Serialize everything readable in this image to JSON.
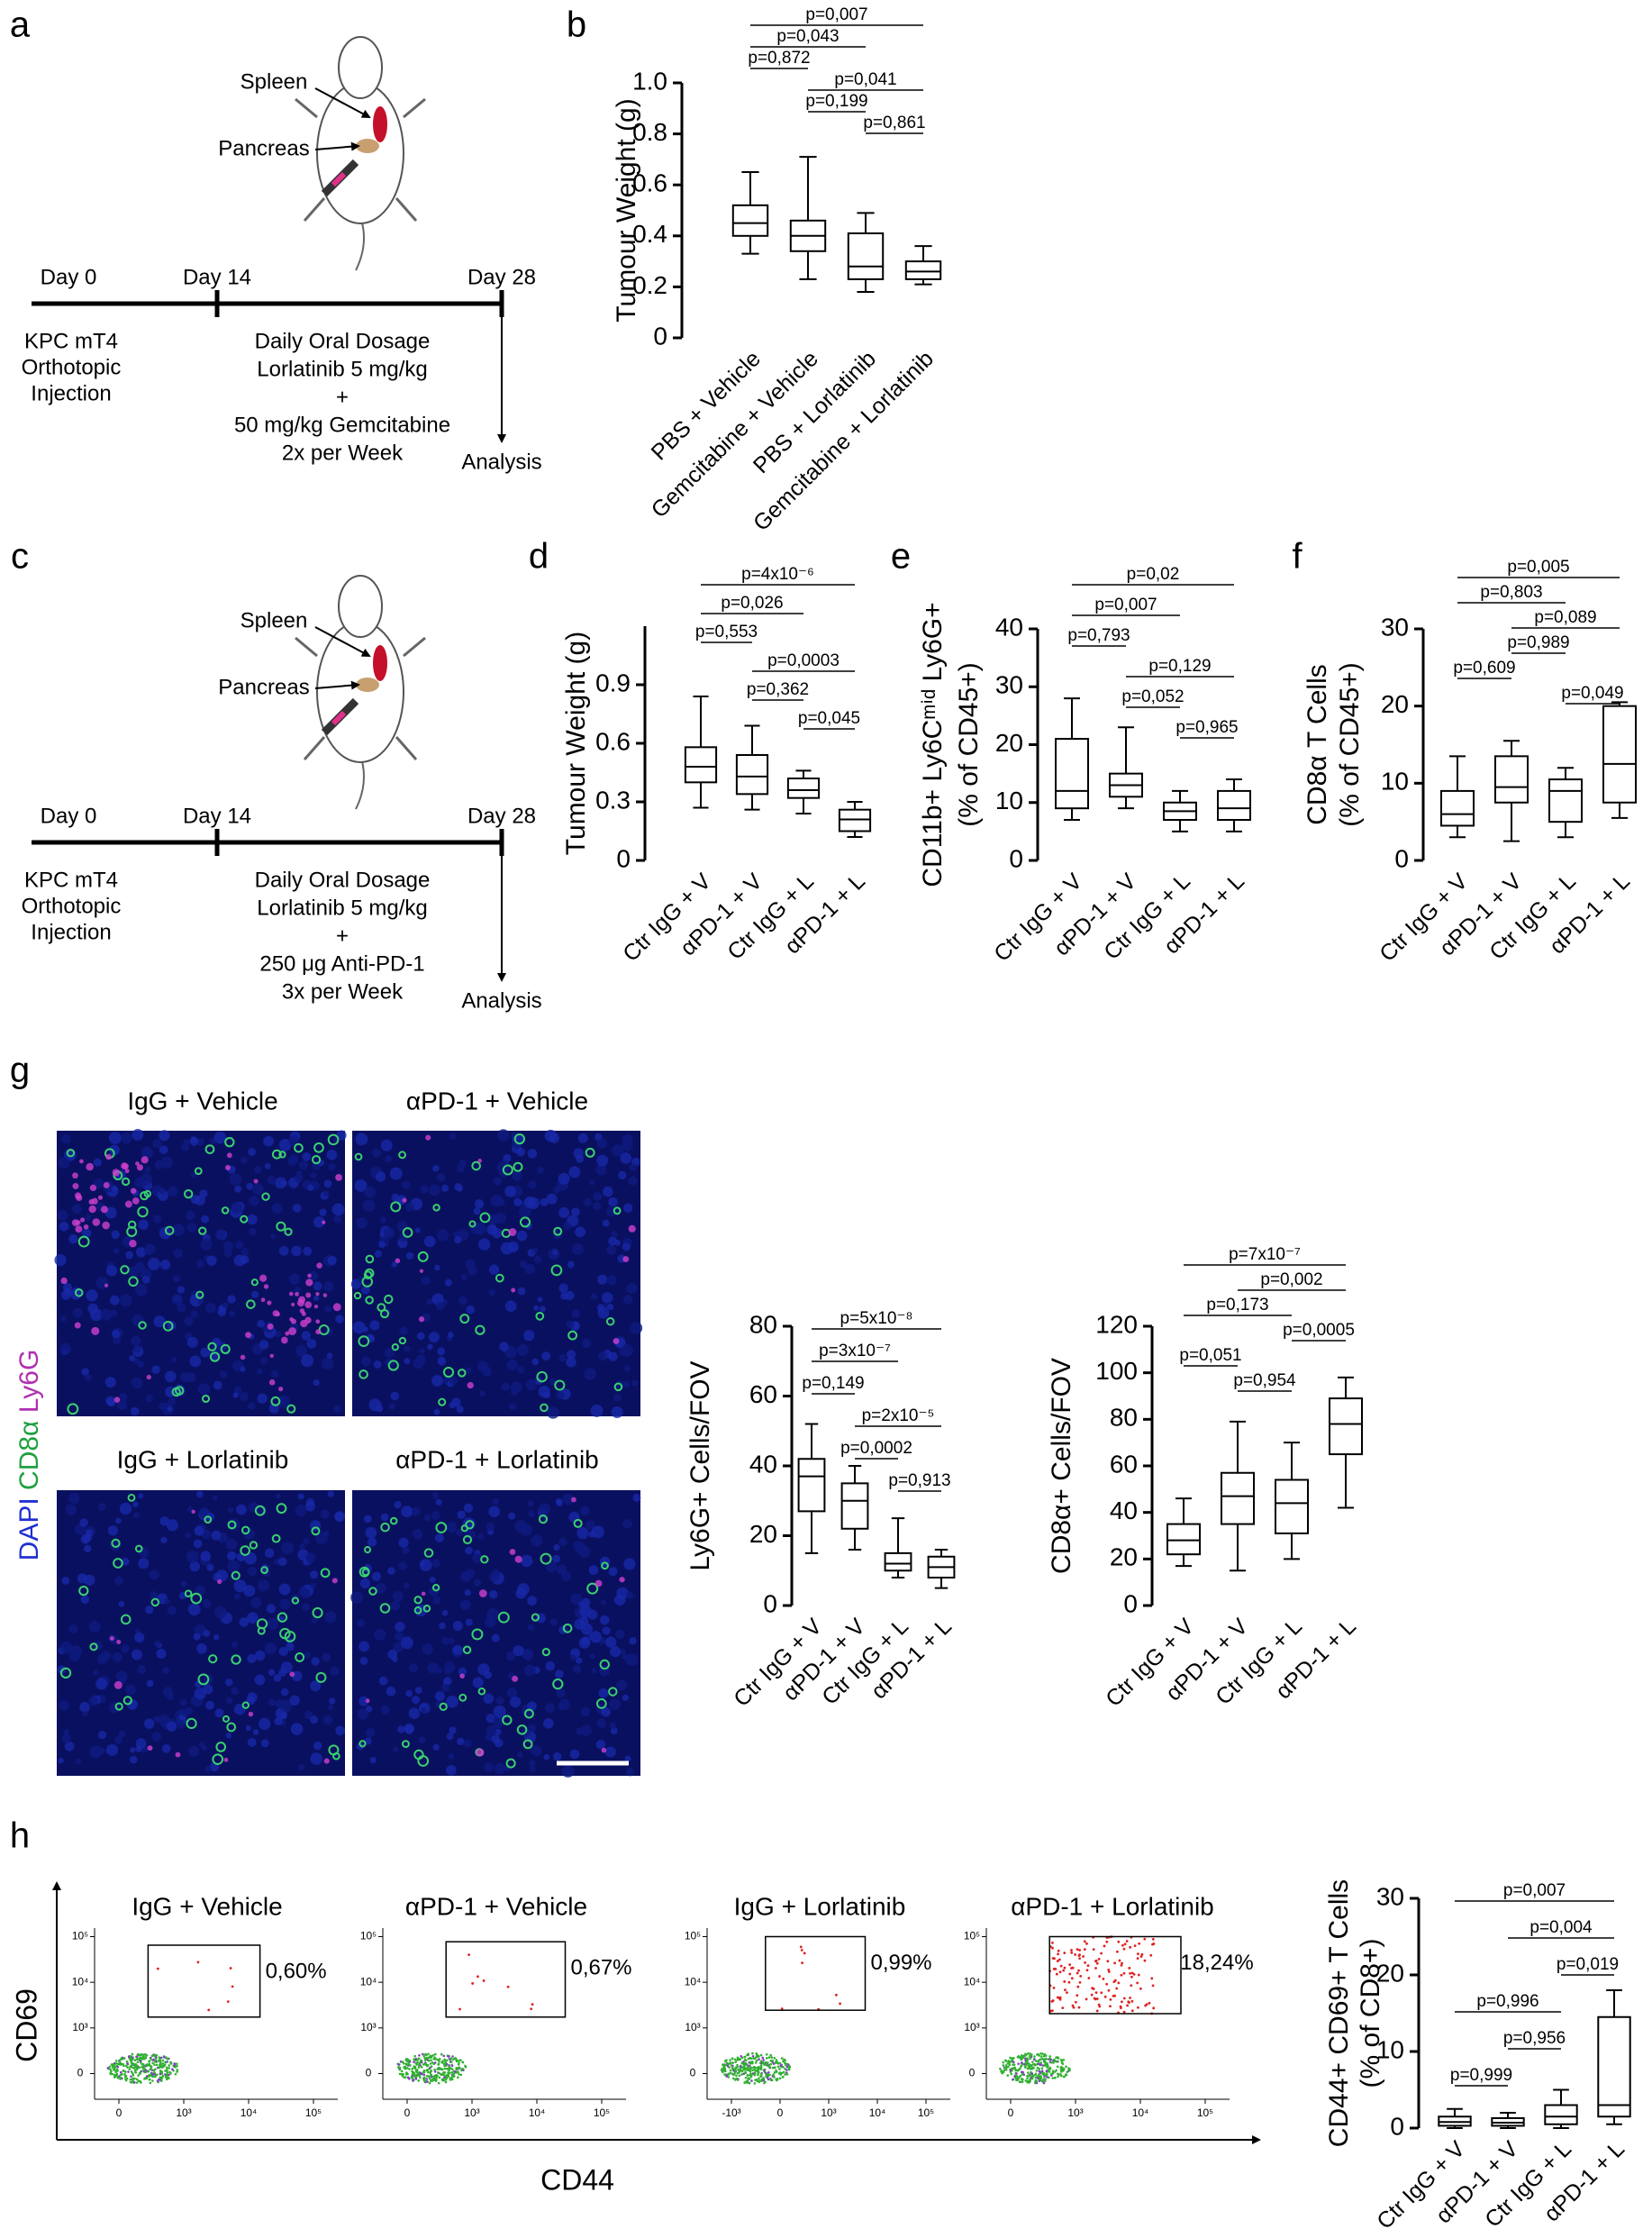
{
  "panel_labels": [
    "a",
    "b",
    "c",
    "d",
    "e",
    "f",
    "g",
    "h"
  ],
  "scheme_a": {
    "spleen": "Spleen",
    "pancreas": "Pancreas",
    "days": [
      "Day 0",
      "Day 14",
      "Day 28"
    ],
    "day0_text": [
      "KPC mT4",
      "Orthotopic",
      "Injection"
    ],
    "treatment": [
      "Daily Oral Dosage",
      "Lorlatinib 5 mg/kg",
      "+",
      "50 mg/kg Gemcitabine",
      "2x per Week"
    ],
    "analysis": "Analysis"
  },
  "scheme_c": {
    "spleen": "Spleen",
    "pancreas": "Pancreas",
    "days": [
      "Day 0",
      "Day 14",
      "Day 28"
    ],
    "day0_text": [
      "KPC mT4",
      "Orthotopic",
      "Injection"
    ],
    "treatment": [
      "Daily Oral Dosage",
      "Lorlatinib 5 mg/kg",
      "+",
      "250 μg Anti-PD-1",
      "3x per Week"
    ],
    "analysis": "Analysis"
  },
  "microscopy": {
    "titles": [
      "IgG + Vehicle",
      "αPD-1 + Vehicle",
      "IgG + Lorlatinib",
      "αPD-1 + Lorlatinib"
    ],
    "stain": [
      "DAPI",
      "CD8α",
      "Ly6G"
    ]
  },
  "flow": {
    "y_axis": "CD69",
    "x_axis": "CD44",
    "plots": [
      {
        "title": "IgG + Vehicle",
        "percent": "0,60%",
        "x_ticks": [
          "0",
          "10³",
          "10⁴",
          "10⁵"
        ],
        "y_ticks": [
          "0",
          "10³",
          "10⁴",
          "10⁵"
        ]
      },
      {
        "title": "αPD-1 + Vehicle",
        "percent": "0,67%",
        "x_ticks": [
          "0",
          "10³",
          "10⁴",
          "10⁵"
        ],
        "y_ticks": [
          "0",
          "10³",
          "10⁴",
          "10⁵"
        ]
      },
      {
        "title": "IgG + Lorlatinib",
        "percent": "0,99%",
        "x_ticks": [
          "-10³",
          "0",
          "10³",
          "10⁴",
          "10⁵"
        ],
        "y_ticks": [
          "0",
          "10³",
          "10⁴",
          "10⁵"
        ]
      },
      {
        "title": "αPD-1 + Lorlatinib",
        "percent": "18,24%",
        "x_ticks": [
          "0",
          "10³",
          "10⁴",
          "10⁵"
        ],
        "y_ticks": [
          "0",
          "10³",
          "10⁴",
          "10⁵"
        ]
      }
    ]
  },
  "chart_data": [
    {
      "type": "box",
      "ylabel": [
        "Tumour Weight (g)"
      ],
      "categories": [
        "PBS + Vehicle",
        "Gemcitabine + Vehicle",
        "PBS + Lorlatinib",
        "Gemcitabine + Lorlatinib"
      ],
      "boxes": [
        {
          "min": 0.33,
          "q1": 0.4,
          "median": 0.45,
          "q3": 0.52,
          "max": 0.65
        },
        {
          "min": 0.23,
          "q1": 0.34,
          "median": 0.4,
          "q3": 0.46,
          "max": 0.71
        },
        {
          "min": 0.18,
          "q1": 0.23,
          "median": 0.28,
          "q3": 0.41,
          "max": 0.49
        },
        {
          "min": 0.21,
          "q1": 0.23,
          "median": 0.26,
          "q3": 0.3,
          "max": 0.36
        }
      ],
      "ylim": [
        0,
        1
      ],
      "yticks": [
        0,
        0.2,
        0.4,
        0.6,
        0.8,
        {
          "value": 1,
          "label": "1.0"
        }
      ],
      "color": "#000000",
      "comparisons": [
        {
          "label": "p=0,007",
          "pair": [
            0,
            3
          ]
        },
        {
          "label": "p=0,043",
          "pair": [
            0,
            2
          ]
        },
        {
          "label": "p=0,872",
          "pair": [
            0,
            1
          ]
        },
        {
          "label": "p=0,041",
          "pair": [
            1,
            3
          ]
        },
        {
          "label": "p=0,199",
          "pair": [
            1,
            2
          ]
        },
        {
          "label": "p=0,861",
          "pair": [
            2,
            3
          ]
        }
      ]
    },
    {
      "type": "box",
      "ylabel": [
        "Tumour Weight (g)"
      ],
      "categories": [
        "Ctr IgG + V",
        "αPD-1 + V",
        "Ctr IgG + L",
        "αPD-1 + L"
      ],
      "boxes": [
        {
          "min": 0.27,
          "q1": 0.4,
          "median": 0.48,
          "q3": 0.58,
          "max": 0.84
        },
        {
          "min": 0.26,
          "q1": 0.34,
          "median": 0.43,
          "q3": 0.54,
          "max": 0.69
        },
        {
          "min": 0.24,
          "q1": 0.32,
          "median": 0.36,
          "q3": 0.42,
          "max": 0.46
        },
        {
          "min": 0.12,
          "q1": 0.15,
          "median": 0.21,
          "q3": 0.26,
          "max": 0.3
        }
      ],
      "ylim": [
        0,
        1.2
      ],
      "yticks": [
        0,
        0.3,
        0.6,
        0.9
      ],
      "color": "#000000",
      "comparisons": [
        {
          "label": "p=4x10⁻⁶",
          "pair": [
            0,
            3
          ]
        },
        {
          "label": "p=0,026",
          "pair": [
            0,
            2
          ]
        },
        {
          "label": "p=0,553",
          "pair": [
            0,
            1
          ]
        },
        {
          "label": "p=0,0003",
          "pair": [
            1,
            3
          ]
        },
        {
          "label": "p=0,362",
          "pair": [
            1,
            2
          ]
        },
        {
          "label": "p=0,045",
          "pair": [
            2,
            3
          ]
        }
      ]
    },
    {
      "type": "box",
      "ylabel": [
        "CD11b+ Ly6Cᵐⁱᵈ Ly6G+",
        "(% of CD45+)"
      ],
      "categories": [
        "Ctr IgG + V",
        "αPD-1 + V",
        "Ctr IgG + L",
        "αPD-1 + L"
      ],
      "boxes": [
        {
          "min": 7,
          "q1": 9,
          "median": 12,
          "q3": 21,
          "max": 28
        },
        {
          "min": 9,
          "q1": 11,
          "median": 13,
          "q3": 15,
          "max": 23
        },
        {
          "min": 5,
          "q1": 7,
          "median": 8.5,
          "q3": 10,
          "max": 12
        },
        {
          "min": 5,
          "q1": 7,
          "median": 9,
          "q3": 12,
          "max": 14
        }
      ],
      "ylim": [
        0,
        40
      ],
      "yticks": [
        0,
        10,
        20,
        30,
        40
      ],
      "color": "#000000",
      "comparisons": [
        {
          "label": "p=0,02",
          "pair": [
            0,
            3
          ]
        },
        {
          "label": "p=0,007",
          "pair": [
            0,
            2
          ]
        },
        {
          "label": "p=0,793",
          "pair": [
            0,
            1
          ]
        },
        {
          "label": "p=0,129",
          "pair": [
            1,
            3
          ]
        },
        {
          "label": "p=0,052",
          "pair": [
            1,
            2
          ]
        },
        {
          "label": "p=0,965",
          "pair": [
            2,
            3
          ]
        }
      ]
    },
    {
      "type": "box",
      "ylabel": [
        "CD8α T Cells",
        "(% of CD45+)"
      ],
      "categories": [
        "Ctr IgG + V",
        "αPD-1 + V",
        "Ctr IgG + L",
        "αPD-1 + L"
      ],
      "boxes": [
        {
          "min": 3,
          "q1": 4.5,
          "median": 6,
          "q3": 9,
          "max": 13.5
        },
        {
          "min": 2.5,
          "q1": 7.5,
          "median": 9.5,
          "q3": 13.5,
          "max": 15.5
        },
        {
          "min": 3,
          "q1": 5,
          "median": 9,
          "q3": 10.5,
          "max": 12
        },
        {
          "min": 5.5,
          "q1": 7.5,
          "median": 12.5,
          "q3": 20,
          "max": 20.5
        }
      ],
      "ylim": [
        0,
        30
      ],
      "yticks": [
        0,
        10,
        20,
        30
      ],
      "color": "#000000",
      "comparisons": [
        {
          "label": "p=0,005",
          "pair": [
            0,
            3
          ]
        },
        {
          "label": "p=0,803",
          "pair": [
            0,
            2
          ]
        },
        {
          "label": "p=0,089",
          "pair": [
            1,
            3
          ]
        },
        {
          "label": "p=0,989",
          "pair": [
            1,
            2
          ]
        },
        {
          "label": "p=0,609",
          "pair": [
            0,
            1
          ]
        },
        {
          "label": "p=0,049",
          "pair": [
            2,
            3
          ]
        }
      ]
    },
    {
      "type": "box",
      "ylabel": [
        "Ly6G+ Cells/FOV"
      ],
      "categories": [
        "Ctr IgG + V",
        "αPD-1 + V",
        "Ctr IgG + L",
        "αPD-1 + L"
      ],
      "boxes": [
        {
          "min": 15,
          "q1": 27,
          "median": 37,
          "q3": 42,
          "max": 52
        },
        {
          "min": 16,
          "q1": 22,
          "median": 30,
          "q3": 35,
          "max": 40
        },
        {
          "min": 8,
          "q1": 10,
          "median": 12,
          "q3": 15,
          "max": 25
        },
        {
          "min": 5,
          "q1": 8,
          "median": 11,
          "q3": 14,
          "max": 16
        }
      ],
      "ylim": [
        0,
        80
      ],
      "yticks": [
        0,
        20,
        40,
        60,
        80
      ],
      "color": "#000000",
      "comparisons": [
        {
          "label": "p=5x10⁻⁸",
          "pair": [
            0,
            3
          ]
        },
        {
          "label": "p=3x10⁻⁷",
          "pair": [
            0,
            2
          ]
        },
        {
          "label": "p=0,149",
          "pair": [
            0,
            1
          ]
        },
        {
          "label": "p=2x10⁻⁵",
          "pair": [
            1,
            3
          ]
        },
        {
          "label": "p=0,0002",
          "pair": [
            1,
            2
          ]
        },
        {
          "label": "p=0,913",
          "pair": [
            2,
            3
          ]
        }
      ]
    },
    {
      "type": "box",
      "ylabel": [
        "CD8α+ Cells/FOV"
      ],
      "categories": [
        "Ctr IgG + V",
        "αPD-1 + V",
        "Ctr IgG + L",
        "αPD-1 + L"
      ],
      "boxes": [
        {
          "min": 17,
          "q1": 22,
          "median": 28,
          "q3": 35,
          "max": 46
        },
        {
          "min": 15,
          "q1": 35,
          "median": 47,
          "q3": 57,
          "max": 79
        },
        {
          "min": 20,
          "q1": 31,
          "median": 44,
          "q3": 54,
          "max": 70
        },
        {
          "min": 42,
          "q1": 65,
          "median": 78,
          "q3": 89,
          "max": 98
        }
      ],
      "ylim": [
        0,
        120
      ],
      "yticks": [
        0,
        20,
        40,
        60,
        80,
        100,
        120
      ],
      "color": "#000000",
      "comparisons": [
        {
          "label": "p=7x10⁻⁷",
          "pair": [
            0,
            3
          ]
        },
        {
          "label": "p=0,002",
          "pair": [
            1,
            3
          ]
        },
        {
          "label": "p=0,173",
          "pair": [
            0,
            2
          ]
        },
        {
          "label": "p=0,0005",
          "pair": [
            2,
            3
          ]
        },
        {
          "label": "p=0,051",
          "pair": [
            0,
            1
          ]
        },
        {
          "label": "p=0,954",
          "pair": [
            1,
            2
          ]
        }
      ]
    },
    {
      "type": "box",
      "ylabel": [
        "CD44+ CD69+ T Cells",
        "(% of CD8+)"
      ],
      "categories": [
        "Ctr IgG + V",
        "αPD-1 + V",
        "Ctr IgG + L",
        "αPD-1 + L"
      ],
      "boxes": [
        {
          "min": 0,
          "q1": 0.3,
          "median": 0.8,
          "q3": 1.5,
          "max": 2.5
        },
        {
          "min": 0,
          "q1": 0.3,
          "median": 0.7,
          "q3": 1.3,
          "max": 2
        },
        {
          "min": 0,
          "q1": 0.5,
          "median": 1.5,
          "q3": 3,
          "max": 5
        },
        {
          "min": 0.5,
          "q1": 1.5,
          "median": 3,
          "q3": 14.5,
          "max": 18
        }
      ],
      "ylim": [
        0,
        30
      ],
      "yticks": [
        0,
        10,
        20,
        30
      ],
      "color": "#000000",
      "comparisons": [
        {
          "label": "p=0,007",
          "pair": [
            0,
            3
          ]
        },
        {
          "label": "p=0,004",
          "pair": [
            1,
            3
          ]
        },
        {
          "label": "p=0,019",
          "pair": [
            2,
            3
          ]
        },
        {
          "label": "p=0,996",
          "pair": [
            0,
            2
          ]
        },
        {
          "label": "p=0,956",
          "pair": [
            1,
            2
          ]
        },
        {
          "label": "p=0,999",
          "pair": [
            0,
            1
          ]
        }
      ]
    }
  ]
}
